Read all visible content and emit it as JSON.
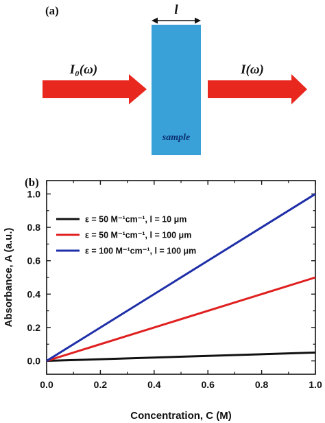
{
  "panel_a": {
    "label": "(a)",
    "length_label": "l",
    "incident_label": "I₀(ω)",
    "transmitted_label": "I(ω)",
    "sample_label": "sample",
    "colors": {
      "arrow": "#e8281e",
      "sample": "#3aa0d8",
      "sample_text": "#0a2f70"
    }
  },
  "panel_b": {
    "label": "(b)"
  },
  "chart_data": {
    "type": "line",
    "xlabel": "Concentration, C (M)",
    "ylabel": "Absorbance, A (a.u.)",
    "xlim": [
      0.0,
      1.0
    ],
    "ylim": [
      -0.08,
      1.08
    ],
    "xticks": [
      "0.0",
      "0.2",
      "0.4",
      "0.6",
      "0.8",
      "1.0"
    ],
    "yticks": [
      "0.0",
      "0.2",
      "0.4",
      "0.6",
      "0.8",
      "1.0"
    ],
    "grid": false,
    "legend_position": "top-left",
    "series": [
      {
        "name": "ε = 50 M⁻¹cm⁻¹, l = 10 μm",
        "color": "#111111",
        "x": [
          0.0,
          1.0
        ],
        "y": [
          0.0,
          0.05
        ]
      },
      {
        "name": "ε = 50 M⁻¹cm⁻¹, l = 100 μm",
        "color": "#e02020",
        "x": [
          0.0,
          1.0
        ],
        "y": [
          0.0,
          0.5
        ]
      },
      {
        "name": "ε = 100 M⁻¹cm⁻¹, l = 100 μm",
        "color": "#1f2fa8",
        "x": [
          0.0,
          1.0
        ],
        "y": [
          0.0,
          1.0
        ]
      }
    ]
  }
}
